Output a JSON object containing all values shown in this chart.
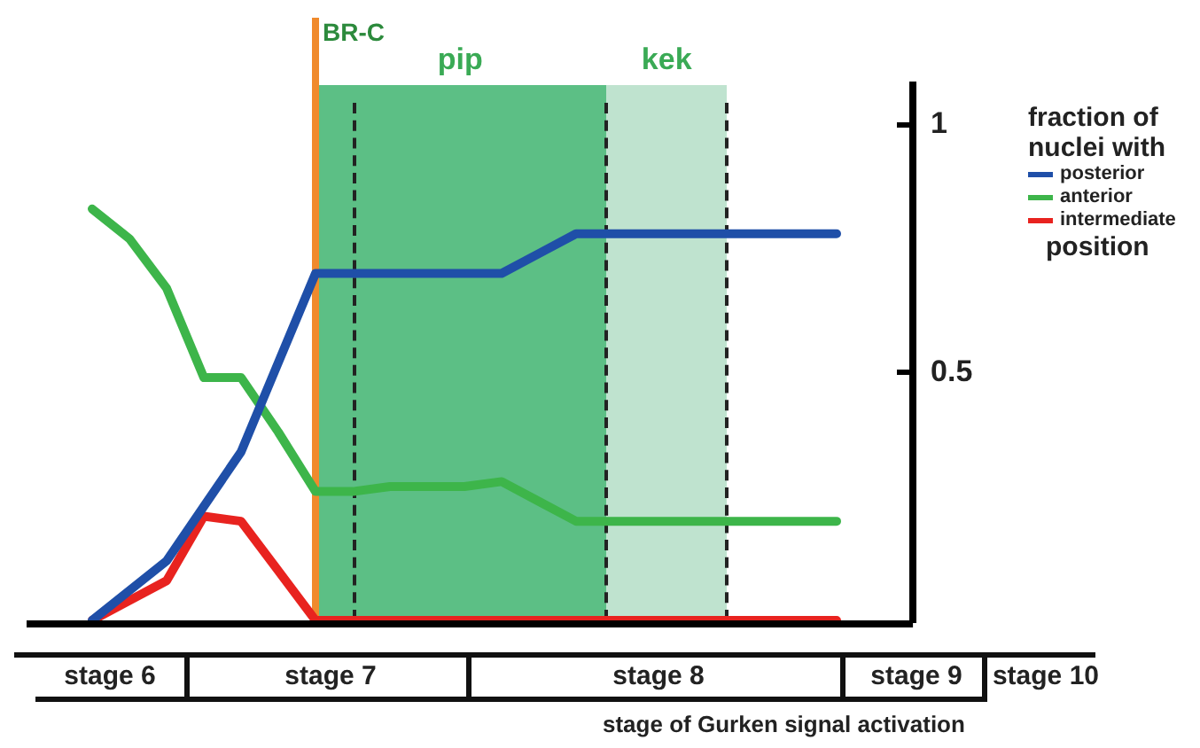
{
  "chart_data": {
    "type": "line",
    "legend_title": "fraction of nuclei with",
    "xlabel": "stage of Gurken signal activation",
    "annotations": [
      "position",
      "BR-C",
      "pip",
      "kek",
      "stage 6",
      "stage 7",
      "stage 8",
      "stage 9",
      "stage 10"
    ],
    "categories": [
      null,
      null,
      null,
      null,
      null,
      null,
      null,
      null,
      null,
      null,
      null,
      null,
      null,
      null,
      null,
      null,
      null,
      null,
      null,
      null,
      null,
      null,
      null,
      null,
      null,
      null,
      null,
      null
    ],
    "ylim": [
      0,
      1.08
    ],
    "yticks": [
      0.5,
      1
    ],
    "tick_labels": "y",
    "legend": "right",
    "grid": false,
    "marker": "none",
    "line_style": "solid",
    "series": [
      {
        "name": "posterior",
        "color": "#1f4fa8",
        "values": [
          0,
          0.06,
          0.12,
          0.23,
          0.34,
          0.52,
          0.7,
          0.7,
          0.7,
          0.7,
          0.7,
          0.7,
          0.74,
          0.78,
          0.78,
          0.78,
          0.78,
          0.78,
          0.78,
          0.78,
          0.78,
          null,
          null,
          null,
          null,
          null,
          null,
          null
        ]
      },
      {
        "name": "anterior",
        "color": "#3db54a",
        "values": [
          0.83,
          0.77,
          0.67,
          0.49,
          0.49,
          0.38,
          0.26,
          0.26,
          0.27,
          0.27,
          0.27,
          0.28,
          0.24,
          0.2,
          0.2,
          0.2,
          0.2,
          0.2,
          0.2,
          0.2,
          0.2,
          null,
          null,
          null,
          null,
          null,
          null,
          null
        ]
      },
      {
        "name": "intermediate",
        "color": "#e8231f",
        "values": [
          0,
          0.04,
          0.08,
          0.21,
          0.2,
          0.1,
          0,
          0,
          0,
          0,
          0,
          0,
          0,
          0,
          0,
          0,
          0,
          0,
          0,
          0,
          0,
          null,
          null,
          null,
          null,
          null,
          null,
          null
        ]
      }
    ]
  }
}
